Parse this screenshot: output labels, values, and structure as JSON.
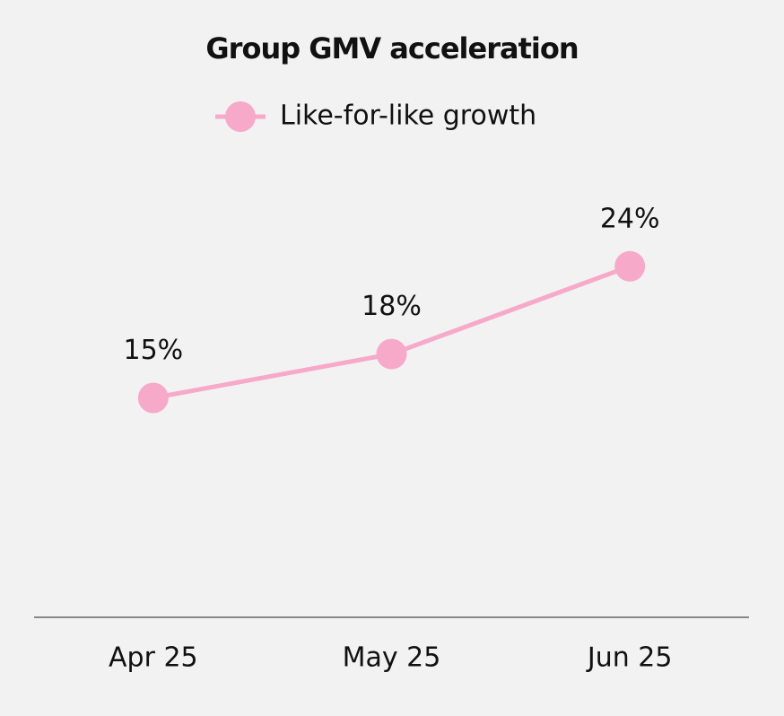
{
  "chart_data": {
    "type": "line",
    "title": "Group GMV acceleration",
    "categories": [
      "Apr 25",
      "May 25",
      "Jun 25"
    ],
    "series": [
      {
        "name": "Like-for-like growth",
        "color": "#f7a9c9",
        "values": [
          15,
          18,
          24
        ],
        "value_labels": [
          "15%",
          "18%",
          "24%"
        ]
      }
    ]
  }
}
